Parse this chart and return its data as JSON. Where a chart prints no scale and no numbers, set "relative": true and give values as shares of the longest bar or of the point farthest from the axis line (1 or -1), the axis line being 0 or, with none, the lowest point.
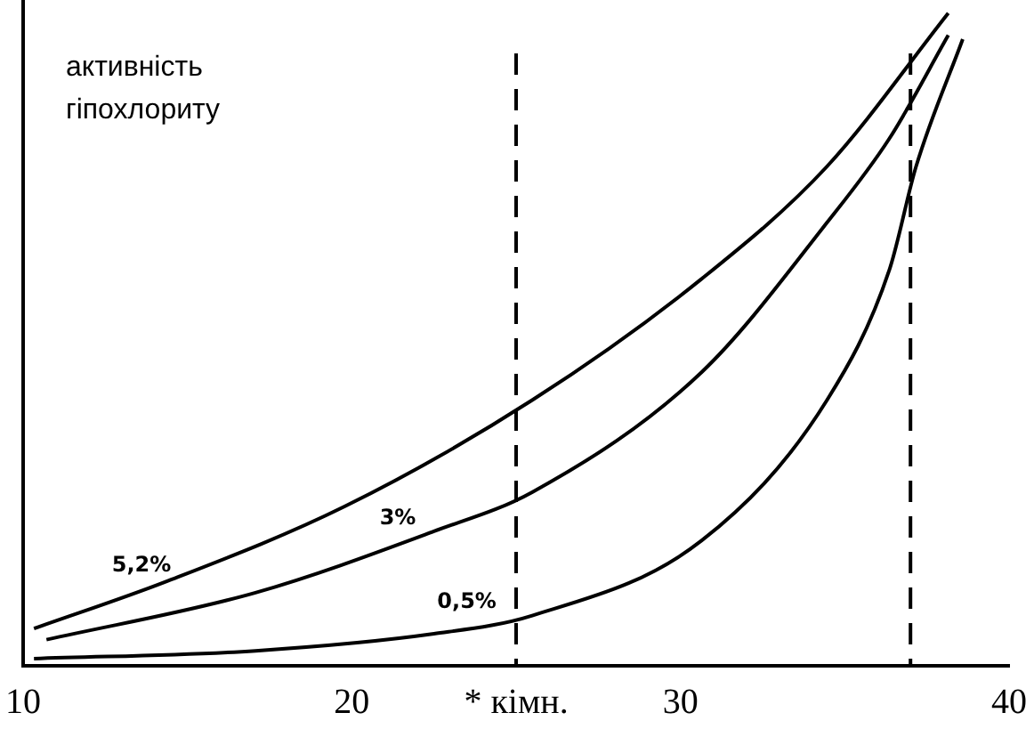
{
  "chart_data": {
    "type": "line",
    "relative": true,
    "ylabel": "активність гіпохлориту",
    "xlim": [
      10,
      40
    ],
    "xticks": [
      10,
      20,
      {
        "value": 25,
        "label": "* кімн."
      },
      30,
      40
    ],
    "grid": false,
    "legend": false,
    "marker": "none",
    "line_style": "solid",
    "ref_lines": [
      {
        "axis": "x",
        "value": 25,
        "line_style": "dashed",
        "color": "#000000"
      },
      {
        "axis": "x",
        "value": 37,
        "line_style": "dashed",
        "color": "#000000"
      }
    ],
    "series": [
      {
        "name": "5,2%",
        "color": "#000000",
        "x": [
          10.33,
          14.35,
          19.78,
          25.49,
          30.65,
          34.46,
          38.15
        ],
        "values": [
          0.057,
          0.129,
          0.244,
          0.407,
          0.593,
          0.765,
          1.0
        ]
      },
      {
        "name": "3%",
        "color": "#000000",
        "x": [
          10.71,
          17.07,
          22.5,
          25.49,
          30.65,
          34.46,
          36.36,
          38.15
        ],
        "values": [
          0.04,
          0.112,
          0.206,
          0.266,
          0.45,
          0.679,
          0.808,
          0.966
        ]
      },
      {
        "name": "0,5%",
        "color": "#000000",
        "x": [
          10.33,
          17.07,
          22.5,
          25.49,
          30.65,
          34.46,
          36.36,
          37.17,
          38.59
        ],
        "values": [
          0.011,
          0.023,
          0.049,
          0.077,
          0.192,
          0.407,
          0.607,
          0.765,
          0.96
        ]
      }
    ]
  }
}
